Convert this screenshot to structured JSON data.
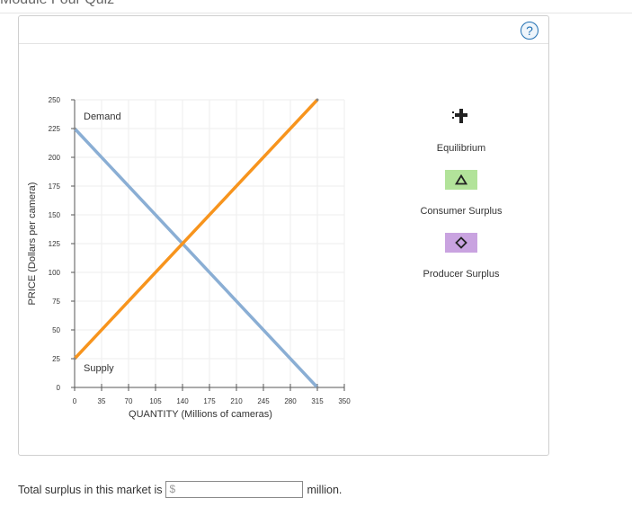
{
  "header": {
    "page_title": "Module Four Quiz"
  },
  "help": {
    "label": "?"
  },
  "chart_data": {
    "type": "line",
    "xlabel": "QUANTITY (Millions of cameras)",
    "ylabel": "PRICE (Dollars per camera)",
    "xlim": [
      0,
      350
    ],
    "ylim": [
      0,
      250
    ],
    "xticks": [
      0,
      35,
      70,
      105,
      140,
      175,
      210,
      245,
      280,
      315,
      350
    ],
    "yticks": [
      0,
      25,
      50,
      75,
      100,
      125,
      150,
      175,
      200,
      225,
      250
    ],
    "grid": true,
    "series": [
      {
        "name": "Demand",
        "color": "#8aaed4",
        "points": [
          [
            0,
            225
          ],
          [
            315,
            0
          ]
        ]
      },
      {
        "name": "Supply",
        "color": "#f7941d",
        "points": [
          [
            0,
            25
          ],
          [
            315,
            250
          ]
        ]
      }
    ]
  },
  "tools": [
    {
      "id": "equilibrium",
      "label": "Equilibrium",
      "icon": "plus-marker-icon",
      "color": "#222222"
    },
    {
      "id": "consumer",
      "label": "Consumer Surplus",
      "icon": "triangle-icon",
      "color": "#b2e39a"
    },
    {
      "id": "producer",
      "label": "Producer Surplus",
      "icon": "diamond-icon",
      "color": "#c9a3e0"
    }
  ],
  "answer": {
    "prefix": "Total surplus in this market is",
    "currency": "$",
    "value": "",
    "suffix": "million."
  }
}
